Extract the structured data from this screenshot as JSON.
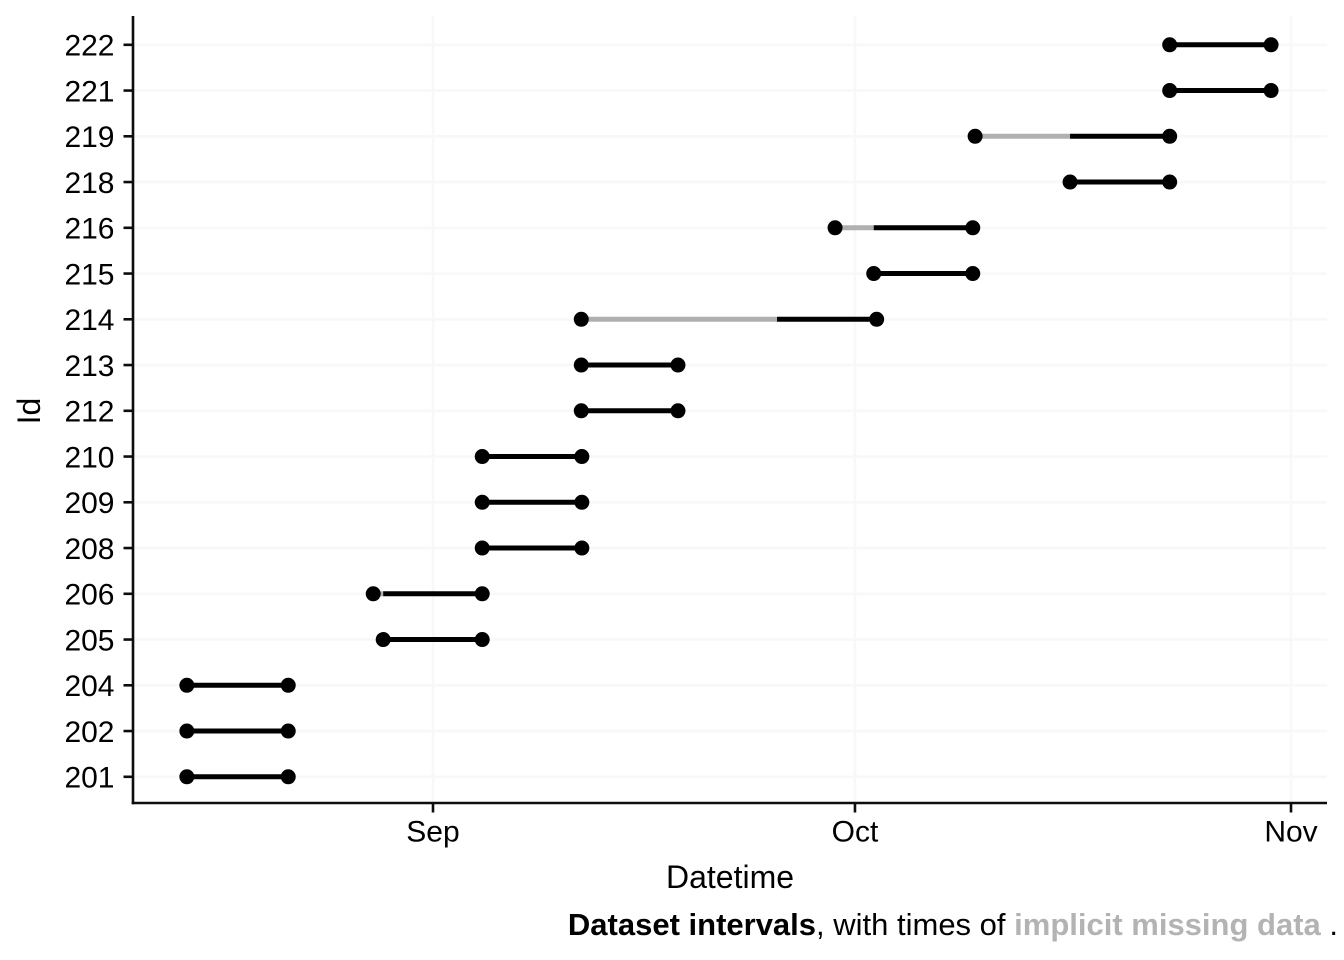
{
  "figure": {
    "xlabel": "Datetime",
    "ylabel": "Id",
    "caption": {
      "part1_bold": "Dataset intervals",
      "part2": ", with times of ",
      "part3_bold_gray": "implicit missing data",
      "part4": " ."
    }
  },
  "chart_data": {
    "type": "interval",
    "title": "",
    "xlabel": "Datetime",
    "ylabel": "Id",
    "x_ticks": [
      "Sep",
      "Oct",
      "Nov"
    ],
    "x_axis_visible_range": [
      "Aug 10",
      "Nov 3"
    ],
    "grid": true,
    "legend": false,
    "y_categories_top_to_bottom": [
      "222",
      "221",
      "219",
      "218",
      "216",
      "215",
      "214",
      "213",
      "212",
      "210",
      "209",
      "208",
      "206",
      "205",
      "204",
      "202",
      "201"
    ],
    "colors": {
      "interval": "#000000",
      "implicit_missing": "#b0b0b0",
      "gridline": "#f8f8f8",
      "axis": "#0d0d0d",
      "caption_highlight": "#b3b3b3"
    },
    "intervals": [
      {
        "id": "222",
        "start": "Oct 23 09:00",
        "missing_until": null,
        "end": "Oct 30 14:00"
      },
      {
        "id": "221",
        "start": "Oct 23 09:00",
        "missing_until": null,
        "end": "Oct 30 14:00"
      },
      {
        "id": "219",
        "start": "Oct 9 13:00",
        "missing_until": "Oct 16 07:00",
        "end": "Oct 23 09:00"
      },
      {
        "id": "218",
        "start": "Oct 16 07:00",
        "missing_until": null,
        "end": "Oct 23 09:00"
      },
      {
        "id": "216",
        "start": "Sep 29 14:00",
        "missing_until": "Oct 2 08:00",
        "end": "Oct 9 09:00"
      },
      {
        "id": "215",
        "start": "Oct 2 08:00",
        "missing_until": null,
        "end": "Oct 9 09:00"
      },
      {
        "id": "214",
        "start": "Sep 11 13:00",
        "missing_until": "Sep 25 11:00",
        "end": "Oct 2 13:00"
      },
      {
        "id": "213",
        "start": "Sep 11 13:00",
        "missing_until": null,
        "end": "Sep 18 10:00"
      },
      {
        "id": "212",
        "start": "Sep 11 13:00",
        "missing_until": null,
        "end": "Sep 18 10:00"
      },
      {
        "id": "210",
        "start": "Sep 4 12:00",
        "missing_until": null,
        "end": "Sep 11 14:00"
      },
      {
        "id": "209",
        "start": "Sep 4 12:00",
        "missing_until": null,
        "end": "Sep 11 14:00"
      },
      {
        "id": "208",
        "start": "Sep 4 12:00",
        "missing_until": null,
        "end": "Sep 11 14:00"
      },
      {
        "id": "206",
        "start": "Aug 27 18:00",
        "missing_until": "Aug 28 11:00",
        "end": "Sep 4 12:00"
      },
      {
        "id": "205",
        "start": "Aug 28 11:00",
        "missing_until": null,
        "end": "Sep 4 12:00"
      },
      {
        "id": "204",
        "start": "Aug 14 12:00",
        "missing_until": null,
        "end": "Aug 21 17:00"
      },
      {
        "id": "202",
        "start": "Aug 14 12:00",
        "missing_until": null,
        "end": "Aug 21 17:00"
      },
      {
        "id": "201",
        "start": "Aug 14 12:00",
        "missing_until": null,
        "end": "Aug 21 17:00"
      }
    ]
  }
}
